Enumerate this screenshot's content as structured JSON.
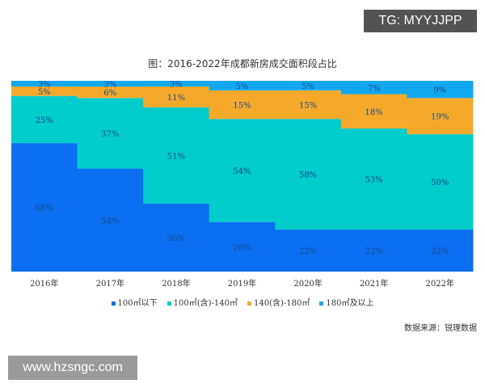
{
  "watermarks": {
    "top": "TG: MYYJJPP",
    "bottom": "www.hzsngc.com"
  },
  "source": "数据来源：锐理数据",
  "chart_data": {
    "type": "area",
    "stacked": "100%",
    "step": true,
    "title": "图：2016-2022年成都新房成交面积段占比",
    "categories": [
      "2016年",
      "2017年",
      "2018年",
      "2019年",
      "2020年",
      "2021年",
      "2022年"
    ],
    "series": [
      {
        "name": "100㎡以下",
        "color": "#0a6ff0",
        "values": [
          68,
          54,
          36,
          26,
          22,
          22,
          22
        ]
      },
      {
        "name": "100㎡(含)-140㎡",
        "color": "#00cccc",
        "values": [
          25,
          37,
          51,
          54,
          58,
          53,
          50
        ]
      },
      {
        "name": "140(含)-180㎡",
        "color": "#f5a92a",
        "values": [
          5,
          6,
          11,
          15,
          15,
          18,
          19
        ]
      },
      {
        "name": "180㎡及以上",
        "color": "#12a8f0",
        "values": [
          3,
          3,
          3,
          5,
          5,
          7,
          9
        ]
      }
    ],
    "ylim": [
      0,
      100
    ],
    "grid": false,
    "legend": "bottom",
    "label_color": "#1a4a8a"
  }
}
